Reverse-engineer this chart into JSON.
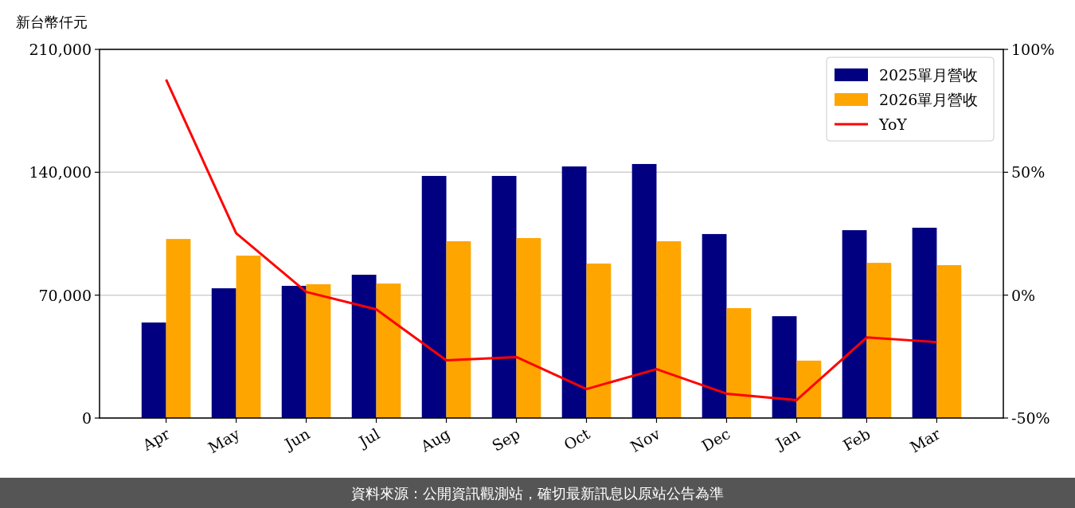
{
  "chart_data": {
    "type": "bar",
    "ylabel": "新台幣仟元",
    "categories": [
      "Apr",
      "May",
      "Jun",
      "Jul",
      "Aug",
      "Sep",
      "Oct",
      "Nov",
      "Dec",
      "Jan",
      "Feb",
      "Mar"
    ],
    "series": [
      {
        "name": "2025單月營收",
        "color": "#000080",
        "values": [
          54400,
          73900,
          75300,
          81600,
          137900,
          137900,
          143300,
          144700,
          104800,
          58000,
          107000,
          108400
        ]
      },
      {
        "name": "2026單月營收",
        "color": "#ffa500",
        "values": [
          102000,
          92500,
          76200,
          76600,
          100700,
          102500,
          88000,
          100700,
          62600,
          32700,
          88400,
          87100
        ]
      },
      {
        "name": "YoY",
        "type": "line",
        "axis": "y2",
        "color": "#ff0000",
        "values": [
          87.7,
          25.2,
          1.3,
          -5.8,
          -26.5,
          -25.2,
          -38.2,
          -30.1,
          -40.1,
          -42.7,
          -17.2,
          -19.1
        ]
      }
    ],
    "ylim": [
      0,
      210000
    ],
    "yticks": [
      {
        "value": 0,
        "label": "0"
      },
      {
        "value": 70000,
        "label": "70,000"
      },
      {
        "value": 140000,
        "label": "140,000"
      },
      {
        "value": 210000,
        "label": "210,000"
      }
    ],
    "y2lim": [
      -50,
      100
    ],
    "y2ticks": [
      {
        "value": -50,
        "label": "-50%"
      },
      {
        "value": 0,
        "label": "0%"
      },
      {
        "value": 50,
        "label": "50%"
      },
      {
        "value": 100,
        "label": "100%"
      }
    ],
    "grid": "y",
    "legend": "top right",
    "marker": "none",
    "annotations": [
      "資料來源：公開資訊觀測站，確切最新訊息以原站公告為準"
    ]
  }
}
